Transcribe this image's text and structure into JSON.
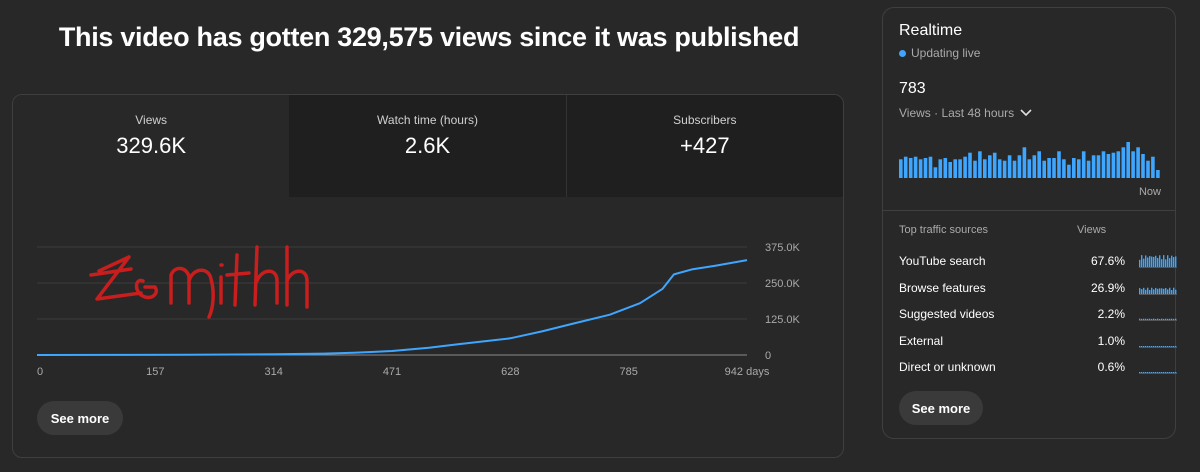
{
  "headline": "This video has gotten 329,575 views since it was published",
  "metrics": [
    {
      "label": "Views",
      "value": "329.6K"
    },
    {
      "label": "Watch time (hours)",
      "value": "2.6K"
    },
    {
      "label": "Subscribers",
      "value": "+427"
    }
  ],
  "chart_data": {
    "type": "line",
    "x": [
      0,
      100,
      200,
      314,
      380,
      420,
      471,
      520,
      560,
      628,
      670,
      710,
      760,
      800,
      830,
      845,
      870,
      900,
      942
    ],
    "values": [
      0,
      500,
      1000,
      2500,
      5000,
      8000,
      14000,
      25000,
      38000,
      58000,
      82000,
      108000,
      140000,
      180000,
      230000,
      280000,
      298000,
      310000,
      329575
    ],
    "x_ticks": [
      "0",
      "157",
      "314",
      "471",
      "628",
      "785",
      "942 days"
    ],
    "y_ticks": [
      "375.0K",
      "250.0K",
      "125.0K",
      "0"
    ],
    "xlim": [
      0,
      942
    ],
    "ylim": [
      0,
      375000
    ],
    "color": "#3ea6ff"
  },
  "see_more_label": "See more",
  "realtime": {
    "title": "Realtime",
    "status": "Updating live",
    "count": "783",
    "period": "Views · Last 48 hours",
    "bar_values": [
      14,
      16,
      15,
      16,
      14,
      15,
      16,
      8,
      14,
      15,
      12,
      14,
      14,
      16,
      19,
      13,
      20,
      14,
      17,
      19,
      14,
      13,
      17,
      13,
      17,
      23,
      14,
      17,
      20,
      13,
      15,
      15,
      20,
      14,
      10,
      15,
      14,
      20,
      13,
      17,
      17,
      20,
      18,
      19,
      20,
      23,
      27,
      20,
      23,
      18,
      13,
      16,
      6
    ],
    "now_label": "Now",
    "sources_header": "Top traffic sources",
    "views_header": "Views",
    "sources": [
      {
        "name": "YouTube search",
        "pct": "67.6%",
        "level": 0.85
      },
      {
        "name": "Browse features",
        "pct": "26.9%",
        "level": 0.45
      },
      {
        "name": "Suggested videos",
        "pct": "2.2%",
        "level": 0.1
      },
      {
        "name": "External",
        "pct": "1.0%",
        "level": 0.07
      },
      {
        "name": "Direct or unknown",
        "pct": "0.6%",
        "level": 0.05
      }
    ],
    "accent": "#3ea6ff"
  }
}
